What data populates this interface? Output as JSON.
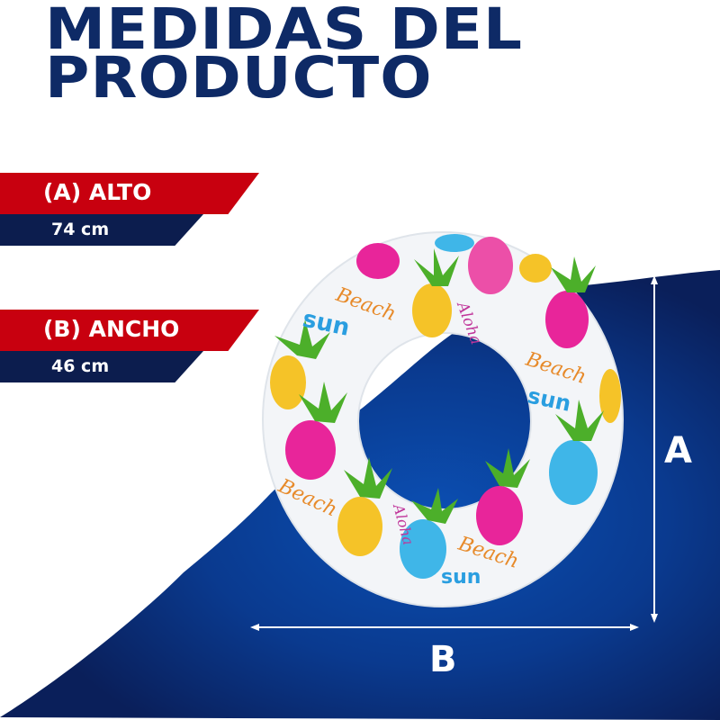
{
  "title": {
    "line1": "MEDIDAS DEL",
    "line2": "PRODUCTO"
  },
  "dimensions": [
    {
      "label": "(A) ALTO",
      "value": "74 cm"
    },
    {
      "label": "(B) ANCHO",
      "value": "46 cm"
    }
  ],
  "diagram": {
    "height_marker": "A",
    "width_marker": "B"
  },
  "product": {
    "name": "inflatable swim ring with pineapple print",
    "print_words": [
      "Beach",
      "sun",
      "Aloha"
    ]
  },
  "colors": {
    "navy": "#0e2a66",
    "red": "#c8000f",
    "band_navy": "#0c1d4e",
    "wave_blue": "#0a48a8"
  }
}
